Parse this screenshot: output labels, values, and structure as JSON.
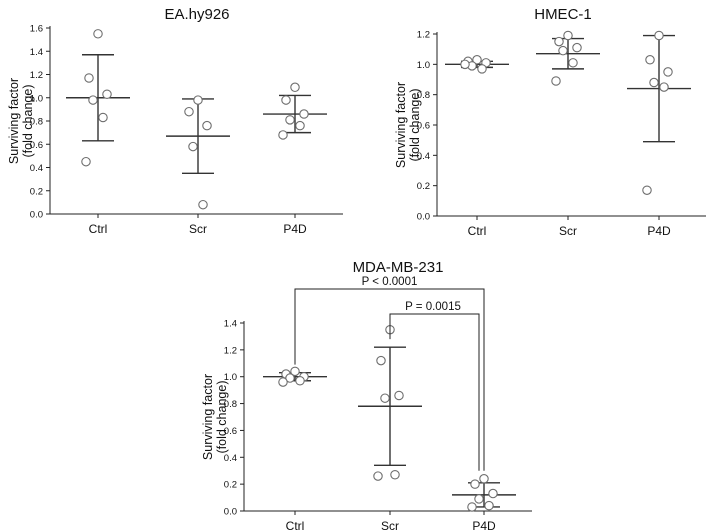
{
  "chart_data": [
    {
      "type": "scatter",
      "title": "EA.hy926",
      "ylabel": "Surviving factor (fold change)",
      "ylabel_lines": [
        "Surviving factor",
        "(fold change)"
      ],
      "categories": [
        "Ctrl",
        "Scr",
        "P4D"
      ],
      "ylim": [
        0,
        1.6
      ],
      "yticks": [
        0.0,
        0.2,
        0.4,
        0.6,
        0.8,
        1.0,
        1.2,
        1.4,
        1.6
      ],
      "ytick_labels": [
        "0.0",
        "0.2",
        "0.4",
        "0.6",
        "0.8",
        "1.0",
        "1.2",
        "1.4",
        "1.6"
      ],
      "points": [
        [
          1.55,
          1.17,
          1.03,
          0.98,
          0.83,
          0.45
        ],
        [
          0.98,
          0.88,
          0.76,
          0.58,
          0.08
        ],
        [
          1.09,
          0.98,
          0.86,
          0.81,
          0.76,
          0.68
        ]
      ],
      "mean": [
        1.0,
        0.67,
        0.86
      ],
      "sd": [
        0.37,
        0.32,
        0.16
      ],
      "annotations": []
    },
    {
      "type": "scatter",
      "title": "HMEC-1",
      "ylabel": "Surviving factor (fold change)",
      "ylabel_lines": [
        "Surviving factor",
        "(fold change)"
      ],
      "categories": [
        "Ctrl",
        "Scr",
        "P4D"
      ],
      "ylim": [
        0,
        1.2
      ],
      "yticks": [
        0.0,
        0.2,
        0.4,
        0.6,
        0.8,
        1.0,
        1.2
      ],
      "ytick_labels": [
        "0.0",
        "0.2",
        "0.4",
        "0.6",
        "0.8",
        "1.0",
        "1.2"
      ],
      "points": [
        [
          1.03,
          1.02,
          1.01,
          0.99,
          0.97,
          1.0
        ],
        [
          1.19,
          1.15,
          1.11,
          1.09,
          1.01,
          0.89
        ],
        [
          1.19,
          1.03,
          0.95,
          0.88,
          0.85,
          0.17
        ]
      ],
      "mean": [
        1.0,
        1.07,
        0.84
      ],
      "sd": [
        0.02,
        0.1,
        0.35
      ],
      "annotations": []
    },
    {
      "type": "scatter",
      "title": "MDA-MB-231",
      "ylabel": "Surviving factor (fold change)",
      "ylabel_lines": [
        "Surviving factor",
        "(fold change)"
      ],
      "categories": [
        "Ctrl",
        "Scr",
        "P4D"
      ],
      "ylim": [
        0,
        1.4
      ],
      "yticks": [
        0.0,
        0.2,
        0.4,
        0.6,
        0.8,
        1.0,
        1.2,
        1.4
      ],
      "ytick_labels": [
        "0.0",
        "0.2",
        "0.4",
        "0.6",
        "0.8",
        "1.0",
        "1.2",
        "1.4"
      ],
      "points": [
        [
          1.04,
          1.02,
          1.0,
          0.99,
          0.97,
          0.96
        ],
        [
          1.35,
          1.12,
          0.86,
          0.84,
          0.27,
          0.26
        ],
        [
          0.24,
          0.2,
          0.13,
          0.09,
          0.04,
          0.03
        ]
      ],
      "mean": [
        1.0,
        0.78,
        0.12
      ],
      "sd": [
        0.03,
        0.44,
        0.09
      ],
      "annotations": [
        {
          "from": 0,
          "to": 2,
          "text": "P < 0.0001"
        },
        {
          "from": 1,
          "to": 2,
          "text": "P = 0.0015"
        }
      ]
    }
  ]
}
